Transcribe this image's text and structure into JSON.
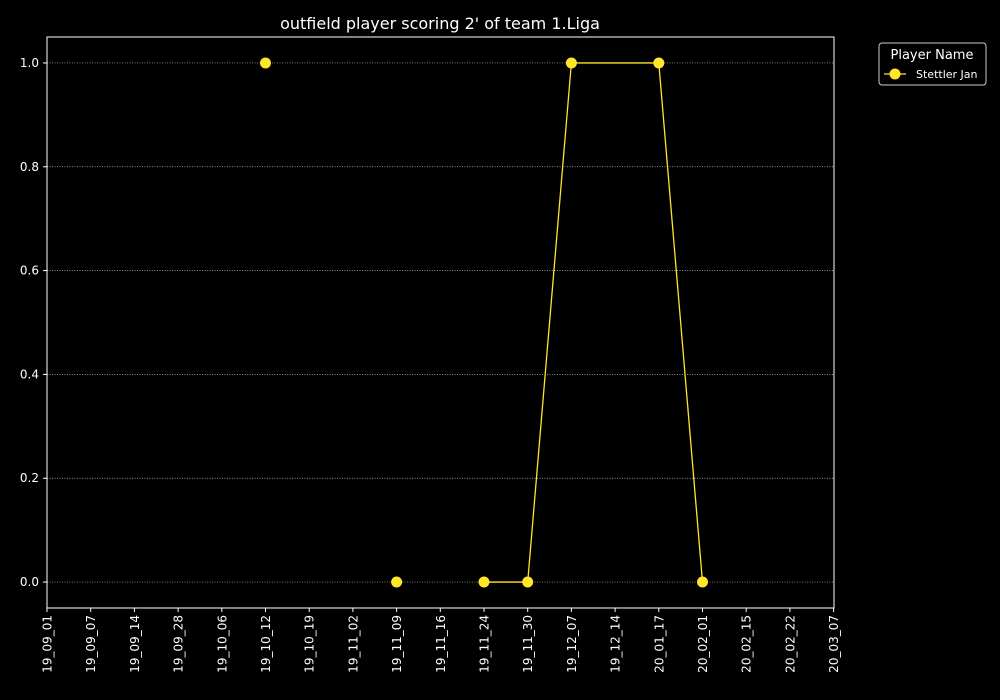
{
  "chart_data": {
    "type": "line",
    "title": "outfield player scoring 2' of team 1.Liga",
    "xlabel": "",
    "ylabel": "",
    "x_ticks": [
      "19_09_01",
      "19_09_07",
      "19_09_14",
      "19_09_28",
      "19_10_06",
      "19_10_12",
      "19_10_19",
      "19_11_02",
      "19_11_09",
      "19_11_16",
      "19_11_24",
      "19_11_30",
      "19_12_07",
      "19_12_14",
      "20_01_17",
      "20_02_01",
      "20_02_15",
      "20_02_22",
      "20_03_07"
    ],
    "y_ticks": [
      "0.0",
      "0.2",
      "0.4",
      "0.6",
      "0.8",
      "1.0"
    ],
    "ylim": [
      -0.05,
      1.05
    ],
    "grid": "horizontal dotted",
    "legend": {
      "title": "Player Name",
      "position": "outside-top-right"
    },
    "series": [
      {
        "name": "Stettler Jan",
        "color": "#ffe629",
        "points": [
          {
            "x": "19_10_12",
            "y": 1.0
          },
          {
            "x": "19_11_09",
            "y": 0.0
          },
          {
            "x": "19_11_24",
            "y": 0.0
          },
          {
            "x": "19_11_30",
            "y": 0.0
          },
          {
            "x": "19_12_07",
            "y": 1.0
          },
          {
            "x": "20_01_17",
            "y": 1.0
          },
          {
            "x": "20_02_01",
            "y": 0.0
          }
        ],
        "line_segments": [
          [
            "19_11_24",
            "19_11_30"
          ],
          [
            "19_11_30",
            "19_12_07"
          ],
          [
            "19_12_07",
            "20_01_17"
          ],
          [
            "20_01_17",
            "20_02_01"
          ]
        ]
      }
    ]
  }
}
